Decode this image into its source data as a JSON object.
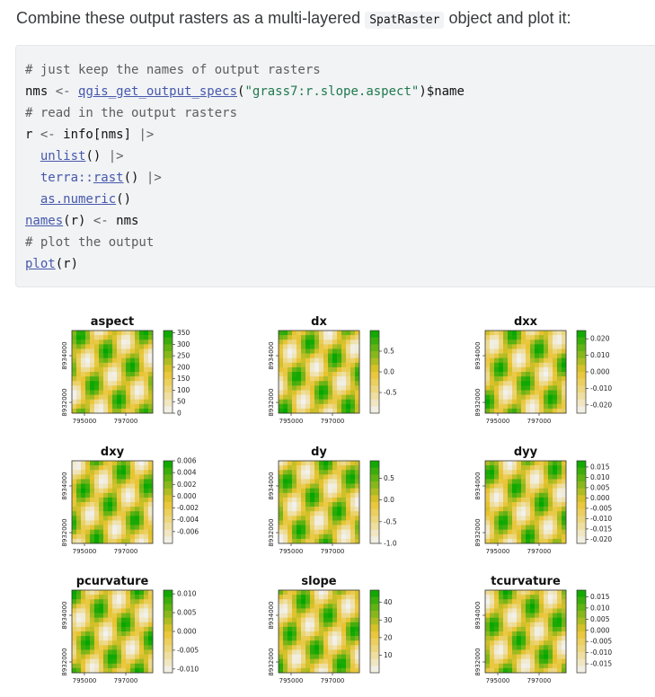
{
  "intro": {
    "before": "Combine these output rasters as a multi-layered ",
    "code": "SpatRaster",
    "after": " object and plot it:"
  },
  "code": {
    "l1": "# just keep the names of output rasters",
    "l2_a": "nms ",
    "l2_op": "<-",
    "l2_fn": "qgis_get_output_specs",
    "l2_p1": "(",
    "l2_str": "\"grass7:r.slope.aspect\"",
    "l2_rest": ")$name",
    "l3": "# read in the output rasters",
    "l4_a": "r ",
    "l4_op": "<-",
    "l4_b": " info[nms] ",
    "l4_pipe": "|>",
    "l5_fn": "unlist",
    "l5_b": "() ",
    "l5_pipe": "|>",
    "l6_ns": "terra::",
    "l6_fn": "rast",
    "l6_b": "() ",
    "l6_pipe": "|>",
    "l7_fn": "as.numeric",
    "l7_b": "()",
    "l8_fn": "names",
    "l8_b": "(r) ",
    "l8_op": "<-",
    "l8_c": " nms",
    "l9": "# plot the output",
    "l10_fn": "plot",
    "l10_b": "(r)"
  },
  "colors": {
    "low": "#f2f2f2",
    "mid": "#e8c32e",
    "high": "#00a600"
  },
  "chart_data": [
    {
      "type": "heatmap",
      "title": "aspect",
      "x_ticks": [
        "795000",
        "797000"
      ],
      "y_ticks": [
        "8932000",
        "8934000"
      ],
      "legend_ticks": [
        "350",
        "300",
        "250",
        "200",
        "150",
        "100",
        "50",
        "0"
      ],
      "legend_range": [
        0,
        360
      ]
    },
    {
      "type": "heatmap",
      "title": "dx",
      "x_ticks": [
        "795000",
        "797000"
      ],
      "y_ticks": [
        "8932000",
        "8934000"
      ],
      "legend_ticks": [
        "0.5",
        "0.0",
        "-0.5"
      ],
      "legend_range": [
        -1.0,
        1.0
      ]
    },
    {
      "type": "heatmap",
      "title": "dxx",
      "x_ticks": [
        "795000",
        "797000"
      ],
      "y_ticks": [
        "8932000",
        "8934000"
      ],
      "legend_ticks": [
        "0.020",
        "0.010",
        "0.000",
        "-0.010",
        "-0.020"
      ],
      "legend_range": [
        -0.025,
        0.025
      ]
    },
    {
      "type": "heatmap",
      "title": "dxy",
      "x_ticks": [
        "795000",
        "797000"
      ],
      "y_ticks": [
        "8932000",
        "8934000"
      ],
      "legend_ticks": [
        "0.006",
        "0.004",
        "0.002",
        "0.000",
        "-0.002",
        "-0.004",
        "-0.006"
      ],
      "legend_range": [
        -0.008,
        0.006
      ]
    },
    {
      "type": "heatmap",
      "title": "dy",
      "x_ticks": [
        "795000",
        "797000"
      ],
      "y_ticks": [
        "8932000",
        "8934000"
      ],
      "legend_ticks": [
        "0.5",
        "0.0",
        "-0.5",
        "-1.0"
      ],
      "legend_range": [
        -1.0,
        0.9
      ]
    },
    {
      "type": "heatmap",
      "title": "dyy",
      "x_ticks": [
        "795000",
        "797000"
      ],
      "y_ticks": [
        "8932000",
        "8934000"
      ],
      "legend_ticks": [
        "0.015",
        "0.010",
        "0.005",
        "0.000",
        "-0.005",
        "-0.010",
        "-0.015",
        "-0.020"
      ],
      "legend_range": [
        -0.022,
        0.018
      ]
    },
    {
      "type": "heatmap",
      "title": "pcurvature",
      "x_ticks": [
        "795000",
        "797000"
      ],
      "y_ticks": [
        "8932000",
        "8934000"
      ],
      "legend_ticks": [
        "0.010",
        "0.005",
        "0.000",
        "-0.005",
        "-0.010"
      ],
      "legend_range": [
        -0.011,
        0.011
      ]
    },
    {
      "type": "heatmap",
      "title": "slope",
      "x_ticks": [
        "795000",
        "797000"
      ],
      "y_ticks": [
        "8932000",
        "8934000"
      ],
      "legend_ticks": [
        "40",
        "30",
        "20",
        "10"
      ],
      "legend_range": [
        0,
        47
      ]
    },
    {
      "type": "heatmap",
      "title": "tcurvature",
      "x_ticks": [
        "795000",
        "797000"
      ],
      "y_ticks": [
        "8932000",
        "8934000"
      ],
      "legend_ticks": [
        "0.015",
        "0.010",
        "0.005",
        "0.000",
        "-0.005",
        "-0.010",
        "-0.015"
      ],
      "legend_range": [
        -0.019,
        0.018
      ]
    }
  ]
}
